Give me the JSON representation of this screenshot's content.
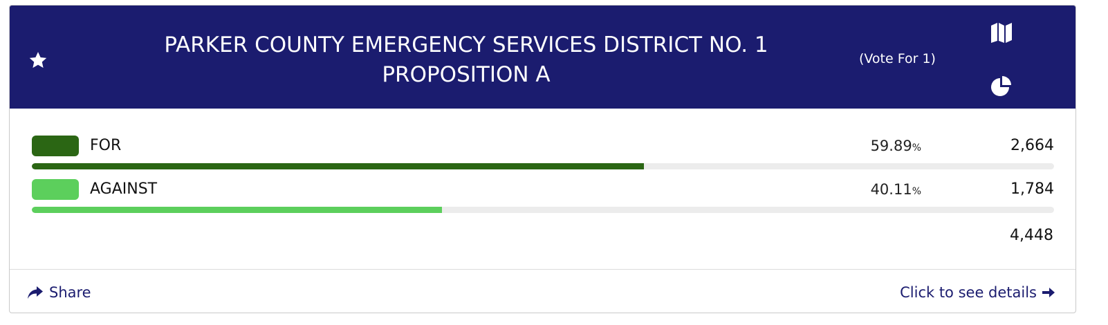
{
  "contest": {
    "title_line1": "PARKER COUNTY EMERGENCY SERVICES DISTRICT NO. 1",
    "title_line2": "PROPOSITION A",
    "vote_for": "(Vote For 1)",
    "header_color": "#1b1c6f"
  },
  "icons": {
    "favorite": "star-icon",
    "map": "map-icon",
    "chart": "pie-chart-icon",
    "share": "share-arrow-icon",
    "details": "arrow-right-icon"
  },
  "choices": [
    {
      "name": "FOR",
      "percent": "59.89",
      "percent_sign": "%",
      "votes": "2,664",
      "share": 0.5989,
      "color": "#2b6614"
    },
    {
      "name": "AGAINST",
      "percent": "40.11",
      "percent_sign": "%",
      "votes": "1,784",
      "share": 0.4011,
      "color": "#5ccf5c"
    }
  ],
  "total_votes": "4,448",
  "footer": {
    "share_label": "Share",
    "details_label": "Click to see details"
  }
}
